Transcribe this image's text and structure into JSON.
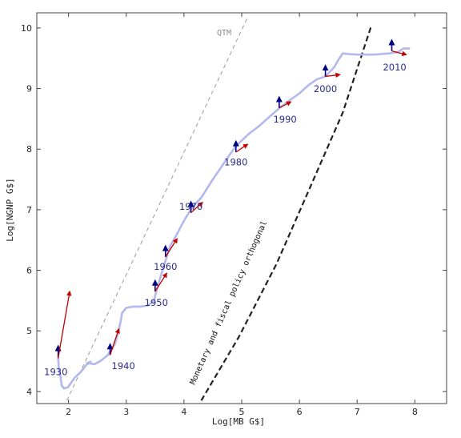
{
  "chart_data": {
    "type": "line",
    "xlabel": "Log[MB G$]",
    "ylabel": "Log[NGNP G$]",
    "xlim": [
      1.45,
      8.55
    ],
    "ylim": [
      3.8,
      10.25
    ],
    "x_ticks": [
      2,
      3,
      4,
      5,
      6,
      7,
      8
    ],
    "y_ticks": [
      4,
      5,
      6,
      7,
      8,
      9,
      10
    ],
    "grid": false,
    "colors": {
      "path": "#b3b8ec",
      "red_arrow": "#c00000",
      "blue_arrow": "#000080",
      "qtm_line": "#9a9a9a",
      "orthogonal_line": "#222222"
    },
    "series": [
      {
        "values": [
          {
            "x": 1.82,
            "y": 4.55
          },
          {
            "x": 1.83,
            "y": 4.4
          },
          {
            "x": 1.86,
            "y": 4.25
          },
          {
            "x": 1.88,
            "y": 4.1
          },
          {
            "x": 1.92,
            "y": 4.05
          },
          {
            "x": 1.99,
            "y": 4.07
          },
          {
            "x": 2.1,
            "y": 4.22
          },
          {
            "x": 2.22,
            "y": 4.33
          },
          {
            "x": 2.3,
            "y": 4.43
          },
          {
            "x": 2.38,
            "y": 4.49
          },
          {
            "x": 2.32,
            "y": 4.47
          },
          {
            "x": 2.45,
            "y": 4.45
          },
          {
            "x": 2.55,
            "y": 4.5
          },
          {
            "x": 2.68,
            "y": 4.6
          },
          {
            "x": 2.8,
            "y": 4.78
          },
          {
            "x": 2.86,
            "y": 4.97
          },
          {
            "x": 2.9,
            "y": 5.15
          },
          {
            "x": 2.93,
            "y": 5.3
          },
          {
            "x": 3.0,
            "y": 5.38
          },
          {
            "x": 3.12,
            "y": 5.4
          },
          {
            "x": 3.25,
            "y": 5.4
          },
          {
            "x": 3.38,
            "y": 5.42
          },
          {
            "x": 3.48,
            "y": 5.5
          },
          {
            "x": 3.52,
            "y": 5.65
          },
          {
            "x": 3.58,
            "y": 5.85
          },
          {
            "x": 3.66,
            "y": 6.1
          },
          {
            "x": 3.76,
            "y": 6.4
          },
          {
            "x": 3.88,
            "y": 6.6
          },
          {
            "x": 4.02,
            "y": 6.85
          },
          {
            "x": 4.15,
            "y": 7.05
          },
          {
            "x": 4.3,
            "y": 7.2
          },
          {
            "x": 4.5,
            "y": 7.5
          },
          {
            "x": 4.75,
            "y": 7.85
          },
          {
            "x": 4.9,
            "y": 8.05
          },
          {
            "x": 5.12,
            "y": 8.25
          },
          {
            "x": 5.3,
            "y": 8.38
          },
          {
            "x": 5.5,
            "y": 8.55
          },
          {
            "x": 5.68,
            "y": 8.7
          },
          {
            "x": 5.85,
            "y": 8.82
          },
          {
            "x": 6.0,
            "y": 8.92
          },
          {
            "x": 6.15,
            "y": 9.05
          },
          {
            "x": 6.3,
            "y": 9.15
          },
          {
            "x": 6.45,
            "y": 9.2
          },
          {
            "x": 6.6,
            "y": 9.35
          },
          {
            "x": 6.68,
            "y": 9.48
          },
          {
            "x": 6.75,
            "y": 9.58
          },
          {
            "x": 6.85,
            "y": 9.57
          },
          {
            "x": 7.0,
            "y": 9.56
          },
          {
            "x": 7.3,
            "y": 9.56
          },
          {
            "x": 7.55,
            "y": 9.58
          },
          {
            "x": 7.7,
            "y": 9.6
          },
          {
            "x": 7.8,
            "y": 9.66
          },
          {
            "x": 7.9,
            "y": 9.66
          }
        ]
      }
    ],
    "year_labels": [
      {
        "label": "1930",
        "x": 1.78,
        "y": 4.27
      },
      {
        "label": "1940",
        "x": 2.95,
        "y": 4.37
      },
      {
        "label": "1950",
        "x": 3.52,
        "y": 5.41
      },
      {
        "label": "1960",
        "x": 3.68,
        "y": 6.01
      },
      {
        "label": "1970",
        "x": 4.12,
        "y": 7.0
      },
      {
        "label": "1980",
        "x": 4.9,
        "y": 7.73
      },
      {
        "label": "1990",
        "x": 5.75,
        "y": 8.44
      },
      {
        "label": "2000",
        "x": 6.45,
        "y": 8.94
      },
      {
        "label": "2010",
        "x": 7.65,
        "y": 9.3
      }
    ],
    "arrows": [
      {
        "x": 1.82,
        "y": 4.55,
        "dx": 0.2,
        "dy": 1.1,
        "dbx": 0.0,
        "dby": 0.2
      },
      {
        "x": 2.72,
        "y": 4.6,
        "dx": 0.15,
        "dy": 0.43,
        "dbx": 0.0,
        "dby": 0.18
      },
      {
        "x": 3.5,
        "y": 5.65,
        "dx": 0.2,
        "dy": 0.3,
        "dbx": 0.0,
        "dby": 0.18
      },
      {
        "x": 3.68,
        "y": 6.22,
        "dx": 0.2,
        "dy": 0.3,
        "dbx": 0.0,
        "dby": 0.18
      },
      {
        "x": 4.12,
        "y": 6.95,
        "dx": 0.2,
        "dy": 0.17,
        "dbx": 0.0,
        "dby": 0.18
      },
      {
        "x": 4.9,
        "y": 7.95,
        "dx": 0.2,
        "dy": 0.13,
        "dbx": 0.0,
        "dby": 0.18
      },
      {
        "x": 5.65,
        "y": 8.68,
        "dx": 0.2,
        "dy": 0.1,
        "dbx": 0.0,
        "dby": 0.18
      },
      {
        "x": 6.45,
        "y": 9.2,
        "dx": 0.25,
        "dy": 0.03,
        "dbx": 0.0,
        "dby": 0.18
      },
      {
        "x": 7.6,
        "y": 9.62,
        "dx": 0.25,
        "dy": -0.06,
        "dbx": 0.0,
        "dby": 0.18
      }
    ],
    "reference_lines": [
      {
        "label": "QTM",
        "points": [
          {
            "x": 1.97,
            "y": 3.85
          },
          {
            "x": 5.1,
            "y": 10.17
          }
        ]
      },
      {
        "label": "Monetary and fiscal policy orthogonal",
        "points": [
          {
            "x": 4.3,
            "y": 3.85
          },
          {
            "x": 4.95,
            "y": 4.9
          },
          {
            "x": 5.6,
            "y": 6.1
          },
          {
            "x": 6.2,
            "y": 7.4
          },
          {
            "x": 6.75,
            "y": 8.6
          },
          {
            "x": 7.25,
            "y": 10.05
          }
        ]
      }
    ]
  }
}
